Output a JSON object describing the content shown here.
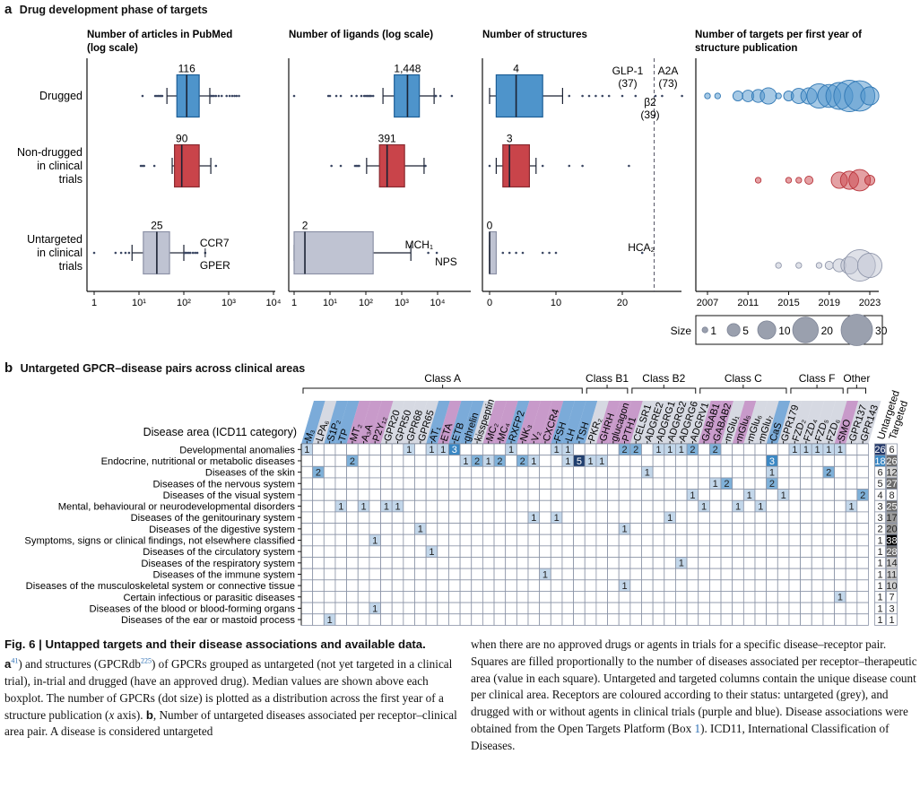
{
  "panel_a": {
    "letter": "a",
    "title": "Drug development phase of targets",
    "groups": [
      "Drugged",
      "Non-drugged in clinical trials",
      "Untargeted in clinical trials"
    ],
    "group_lines": [
      [
        "Drugged"
      ],
      [
        "Non-drugged",
        "in clinical",
        "trials"
      ],
      [
        "Untargeted",
        "in clinical",
        "trials"
      ]
    ],
    "group_colors": {
      "Drugged": "#4e94cb",
      "Non-drugged in clinical trials": "#c9444a",
      "Untargeted in clinical trials": "#bfc3d2"
    },
    "size_legend": {
      "label": "Size",
      "values": [
        1,
        5,
        10,
        20,
        30
      ]
    }
  },
  "chart_data": [
    {
      "type": "boxplot",
      "title": "Number of  articles in PubMed (log scale)",
      "title_lines": [
        "Number of  articles in PubMed",
        "(log scale)"
      ],
      "xscale": "log",
      "xlim": [
        1,
        10000
      ],
      "xticks": [
        1,
        10,
        100,
        1000,
        10000
      ],
      "xtick_labels": [
        "1",
        "10¹",
        "10²",
        "10³",
        "10⁴"
      ],
      "series": [
        {
          "name": "Drugged",
          "median": 116,
          "q1": 70,
          "q3": 220,
          "whisker_low": 42,
          "whisker_high": 380,
          "outliers": [
            12,
            23,
            25,
            27,
            29,
            31,
            33,
            400,
            430,
            470,
            520,
            600,
            700,
            900,
            1050,
            1200,
            1350,
            1500,
            1700
          ]
        },
        {
          "name": "Non-drugged in clinical trials",
          "median": 90,
          "q1": 62,
          "q3": 220,
          "whisker_low": 55,
          "whisker_high": 400,
          "outliers": [
            11,
            12,
            13,
            22,
            520
          ]
        },
        {
          "name": "Untargeted in clinical trials",
          "median": 25,
          "q1": 12.5,
          "q3": 48,
          "whisker_low": 7,
          "whisker_high": 100,
          "outliers": [
            1,
            3,
            4,
            5,
            6,
            105,
            110,
            120,
            130,
            140,
            160,
            180,
            200,
            300
          ],
          "annotations": [
            {
              "label": "CCR7",
              "value": 300,
              "position": "above"
            },
            {
              "label": "GPER",
              "value": 300,
              "position": "below"
            }
          ]
        }
      ]
    },
    {
      "type": "boxplot",
      "title": "Number of  ligands (log scale)",
      "xscale": "log",
      "xlim": [
        1,
        30000
      ],
      "xticks": [
        1,
        10,
        100,
        1000,
        10000
      ],
      "xtick_labels": [
        "1",
        "10¹",
        "10²",
        "10³",
        "10⁴"
      ],
      "series": [
        {
          "name": "Drugged",
          "median": 1448,
          "q1": 620,
          "q3": 3100,
          "whisker_low": 300,
          "whisker_high": 8000,
          "outliers": [
            1,
            9,
            10,
            15,
            20,
            40,
            55,
            75,
            90,
            100,
            110,
            120,
            130,
            140,
            160,
            8500,
            9000,
            12000,
            25000
          ]
        },
        {
          "name": "Non-drugged in clinical trials",
          "median": 391,
          "q1": 240,
          "q3": 1200,
          "whisker_low": 105,
          "whisker_high": 4200,
          "outliers": [
            11,
            20,
            50,
            55,
            60,
            65,
            4600
          ]
        },
        {
          "name": "Untargeted in clinical trials",
          "median": 2,
          "q1": 1,
          "q3": 160,
          "whisker_low": 1,
          "whisker_high": 1800,
          "outliers": [
            5500,
            9500
          ],
          "annotations": [
            {
              "label": "MCH₁",
              "value": 5500,
              "position": "above"
            },
            {
              "label": "NPS",
              "value": 9500,
              "position": "below"
            }
          ]
        }
      ]
    },
    {
      "type": "boxplot",
      "title": "Number of structures",
      "xscale": "linear",
      "xlim": [
        -1,
        31
      ],
      "xticks": [
        0,
        10,
        20
      ],
      "xtick_labels": [
        "0",
        "10",
        "20"
      ],
      "reference_line": 24.8,
      "series": [
        {
          "name": "Drugged",
          "median": 4,
          "q1": 1,
          "q3": 8,
          "whisker_low": 0,
          "whisker_high": 11,
          "outliers": [
            12,
            14,
            15,
            16,
            17,
            18,
            20,
            22,
            25,
            26,
            29
          ],
          "annotations": [
            {
              "label": "GLP-1 (37)",
              "value": 26
            },
            {
              "label": "A2A (73)",
              "value": 29
            },
            {
              "label": "β2 (39)",
              "value": 25.5
            }
          ]
        },
        {
          "name": "Non-drugged in clinical trials",
          "median": 3,
          "q1": 2,
          "q3": 6,
          "whisker_low": 1,
          "whisker_high": 7,
          "outliers": [
            0,
            8,
            12,
            14,
            21
          ]
        },
        {
          "name": "Untargeted in clinical trials",
          "median": 0,
          "q1": 0,
          "q3": 1,
          "whisker_low": 0,
          "whisker_high": 1,
          "outliers": [
            2,
            3,
            4,
            5,
            8,
            9,
            10,
            23
          ],
          "annotations": [
            {
              "label": "HCA₂",
              "value": 23
            }
          ]
        }
      ]
    },
    {
      "type": "scatter",
      "title": "Number of targets per first year of structure publication",
      "title_lines": [
        "Number of targets per first year of",
        "structure publication"
      ],
      "xlim": [
        2006,
        2024
      ],
      "xticks": [
        2007,
        2011,
        2015,
        2019,
        2023
      ],
      "xtick_labels": [
        "2007",
        "2011",
        "2015",
        "2019",
        "2023"
      ],
      "size_meaning": "number of GPCRs",
      "series": [
        {
          "name": "Drugged",
          "x": [
            2007,
            2008,
            2010,
            2011,
            2012,
            2013,
            2014,
            2015,
            2016,
            2017,
            2018,
            2019,
            2020,
            2021,
            2022,
            2023
          ],
          "sizes": [
            1,
            1,
            3,
            4,
            5,
            8,
            1,
            3,
            7,
            8,
            18,
            16,
            22,
            30,
            28,
            10
          ]
        },
        {
          "name": "Non-drugged in clinical trials",
          "x": [
            2012,
            2015,
            2016,
            2017,
            2020,
            2021,
            2022,
            2023
          ],
          "sizes": [
            1,
            1,
            1,
            2,
            8,
            10,
            14,
            3
          ]
        },
        {
          "name": "Untargeted in clinical trials",
          "x": [
            2014,
            2016,
            2018,
            2019,
            2020,
            2021,
            2022,
            2023
          ],
          "sizes": [
            1,
            1,
            1,
            2,
            5,
            9,
            30,
            18
          ]
        }
      ]
    },
    {
      "type": "heatmap",
      "title": "Untargeted GPCR–disease pairs across clinical areas",
      "ylabel": "Disease area (ICD11 category)",
      "receptor_classes": [
        {
          "name": "Class A",
          "from": 0,
          "to": 24
        },
        {
          "name": "Class B1",
          "from": 25,
          "to": 28
        },
        {
          "name": "Class B2",
          "from": 29,
          "to": 34
        },
        {
          "name": "Class C",
          "from": 35,
          "to": 42
        },
        {
          "name": "Class F",
          "from": 43,
          "to": 47
        },
        {
          "name": "Other",
          "from": 48,
          "to": 49
        }
      ],
      "receptors": [
        {
          "name": "M₃",
          "status": "drugged"
        },
        {
          "name": "LPA₆",
          "status": "untargeted"
        },
        {
          "name": "S1P₂",
          "status": "drugged"
        },
        {
          "name": "TP",
          "status": "drugged"
        },
        {
          "name": "MT₂",
          "status": "in-trial"
        },
        {
          "name": "A₃A",
          "status": "in-trial"
        },
        {
          "name": "P2Y₁₂",
          "status": "in-trial"
        },
        {
          "name": "GPR20",
          "status": "untargeted"
        },
        {
          "name": "GPR50",
          "status": "untargeted"
        },
        {
          "name": "GPR68",
          "status": "untargeted"
        },
        {
          "name": "GPR65",
          "status": "untargeted"
        },
        {
          "name": "AT₁",
          "status": "drugged"
        },
        {
          "name": "ETA",
          "status": "in-trial"
        },
        {
          "name": "ETB",
          "status": "drugged"
        },
        {
          "name": "ghrelin",
          "status": "drugged"
        },
        {
          "name": "kisspeptin",
          "status": "untargeted"
        },
        {
          "name": "MC₂",
          "status": "in-trial"
        },
        {
          "name": "MC₄",
          "status": "in-trial"
        },
        {
          "name": "RXFP2",
          "status": "drugged"
        },
        {
          "name": "NK₃",
          "status": "in-trial"
        },
        {
          "name": "V₂",
          "status": "in-trial"
        },
        {
          "name": "CXCR4",
          "status": "in-trial"
        },
        {
          "name": "FSH",
          "status": "drugged"
        },
        {
          "name": "LH",
          "status": "drugged"
        },
        {
          "name": "TSH",
          "status": "drugged"
        },
        {
          "name": "PKR₂",
          "status": "untargeted"
        },
        {
          "name": "GHRH",
          "status": "in-trial"
        },
        {
          "name": "glucagon",
          "status": "in-trial"
        },
        {
          "name": "PTH1",
          "status": "in-trial"
        },
        {
          "name": "CELSR1",
          "status": "untargeted"
        },
        {
          "name": "ADGRE2",
          "status": "untargeted"
        },
        {
          "name": "ADGRG1",
          "status": "untargeted"
        },
        {
          "name": "ADGRG2",
          "status": "untargeted"
        },
        {
          "name": "ADGRG6",
          "status": "untargeted"
        },
        {
          "name": "ADGRV1",
          "status": "untargeted"
        },
        {
          "name": "GABAB1",
          "status": "in-trial"
        },
        {
          "name": "GABAB2",
          "status": "in-trial"
        },
        {
          "name": "mGlu₁",
          "status": "untargeted"
        },
        {
          "name": "mGlu₅",
          "status": "in-trial"
        },
        {
          "name": "mGlu₆",
          "status": "untargeted"
        },
        {
          "name": "mGlu₇",
          "status": "untargeted"
        },
        {
          "name": "CaS",
          "status": "drugged"
        },
        {
          "name": "GPR179",
          "status": "untargeted"
        },
        {
          "name": "FZD₂",
          "status": "untargeted"
        },
        {
          "name": "FZD₄",
          "status": "untargeted"
        },
        {
          "name": "FZD₅",
          "status": "untargeted"
        },
        {
          "name": "FZD₆",
          "status": "untargeted"
        },
        {
          "name": "SMO",
          "status": "in-trial"
        },
        {
          "name": "GPR137",
          "status": "untargeted"
        },
        {
          "name": "GPR143",
          "status": "untargeted"
        }
      ],
      "status_colors": {
        "drugged": "#4f8fcc",
        "in-trial": "#b678b8",
        "untargeted": "#c8ccd8"
      },
      "summary_headers": [
        "Untargeted",
        "Targeted"
      ],
      "rows": [
        {
          "disease": "Developmental anomalies",
          "cells": {
            "0": 1,
            "9": 1,
            "11": 1,
            "12": 1,
            "13": 3,
            "18": 1,
            "22": 1,
            "23": 1,
            "28": 2,
            "29": 2,
            "31": 1,
            "32": 1,
            "33": 1,
            "34": 2,
            "36": 2,
            "43": 1,
            "44": 1,
            "45": 1,
            "46": 1,
            "47": 1
          },
          "untargeted": 26,
          "targeted": 6
        },
        {
          "disease": "Endocrine, nutritional or metabolic diseases",
          "cells": {
            "4": 2,
            "14": 1,
            "15": 2,
            "16": 1,
            "17": 2,
            "19": 2,
            "20": 1,
            "23": 1,
            "24": 5,
            "25": 1,
            "26": 1,
            "41": 3
          },
          "untargeted": 18,
          "targeted": 26
        },
        {
          "disease": "Diseases of the skin",
          "cells": {
            "1": 2,
            "30": 1,
            "41": 1,
            "46": 2
          },
          "untargeted": 6,
          "targeted": 12
        },
        {
          "disease": "Diseases of the nervous system",
          "cells": {
            "36": 1,
            "37": 2,
            "41": 2
          },
          "untargeted": 5,
          "targeted": 27
        },
        {
          "disease": "Diseases of the visual system",
          "cells": {
            "34": 1,
            "39": 1,
            "42": 1,
            "49": 2
          },
          "untargeted": 4,
          "targeted": 8
        },
        {
          "disease": "Mental, behavioural or neurodevelopmental disorders",
          "cells": {
            "3": 1,
            "5": 1,
            "7": 1,
            "8": 1,
            "35": 1,
            "38": 1,
            "40": 1,
            "48": 1
          },
          "untargeted": 3,
          "targeted": 25
        },
        {
          "disease": "Diseases of the genitourinary system",
          "cells": {
            "20": 1,
            "22": 1,
            "32": 1
          },
          "untargeted": 3,
          "targeted": 17
        },
        {
          "disease": "Diseases of the digestive system",
          "cells": {
            "10": 1,
            "28": 1
          },
          "untargeted": 2,
          "targeted": 20
        },
        {
          "disease": "Symptoms, signs or clinical findings, not elsewhere classified",
          "cells": {
            "6": 1
          },
          "untargeted": 1,
          "targeted": 38
        },
        {
          "disease": "Diseases of the circulatory system",
          "cells": {
            "11": 1
          },
          "untargeted": 1,
          "targeted": 28
        },
        {
          "disease": "Diseases of the respiratory system",
          "cells": {
            "33": 1
          },
          "untargeted": 1,
          "targeted": 14
        },
        {
          "disease": "Diseases of the immune system",
          "cells": {
            "21": 1
          },
          "untargeted": 1,
          "targeted": 11
        },
        {
          "disease": "Diseases of the musculoskeletal system or connective tissue",
          "cells": {
            "28": 1
          },
          "untargeted": 1,
          "targeted": 10
        },
        {
          "disease": "Certain infectious or parasitic diseases",
          "cells": {
            "47": 1
          },
          "untargeted": 1,
          "targeted": 7
        },
        {
          "disease": "Diseases of the blood or blood-forming organs",
          "cells": {
            "6": 1
          },
          "untargeted": 1,
          "targeted": 3
        },
        {
          "disease": "Diseases of the ear or mastoid process",
          "cells": {
            "2": 1
          },
          "untargeted": 1,
          "targeted": 1
        }
      ]
    }
  ],
  "panel_b": {
    "letter": "b",
    "title": "Untargeted GPCR–disease pairs across clinical areas"
  },
  "caption": {
    "heading": "Fig. 6 | Untapped targets and their disease associations and available data.",
    "col1": [
      {
        "b": "a",
        "t": ", Availability of literature, ligand and structural data across untargeted, in-trial and drugged G protein-coupled receptors (GPCRs). The panels show (left to right) the number of publications (PubMed), ligands (GPCRdb"
      },
      {
        "ref": "41"
      },
      {
        "t": ") and structures (GPCRdb"
      },
      {
        "ref": "225"
      },
      {
        "t": ") of GPCRs grouped as untargeted (not yet targeted in a clinical trial), in-trial and drugged (have an approved drug). Median values are shown above each boxplot. The number of GPCRs (dot size) is plotted as a distribution across the first year of a structure publication ("
      },
      {
        "i": "x"
      },
      {
        "t": " axis). "
      },
      {
        "b": "b"
      },
      {
        "t": ", Number of untargeted diseases associated per receptor–clinical area pair. A disease is considered untargeted"
      }
    ],
    "col2": [
      {
        "t": "when there are no approved drugs or agents in trials for a specific disease–receptor pair. Squares are filled proportionally to the number of diseases associated per receptor–therapeutic area (value in each square). Untargeted and targeted columns contain the unique disease count per clinical area. Receptors are coloured according to their status: untargeted (grey), and drugged with or without agents in clinical trials (purple and blue). Disease associations were obtained from the Open Targets Platform (Box "
      },
      {
        "ref_inline": "1"
      },
      {
        "t": "). ICD11, International Classification of Diseases."
      }
    ]
  }
}
